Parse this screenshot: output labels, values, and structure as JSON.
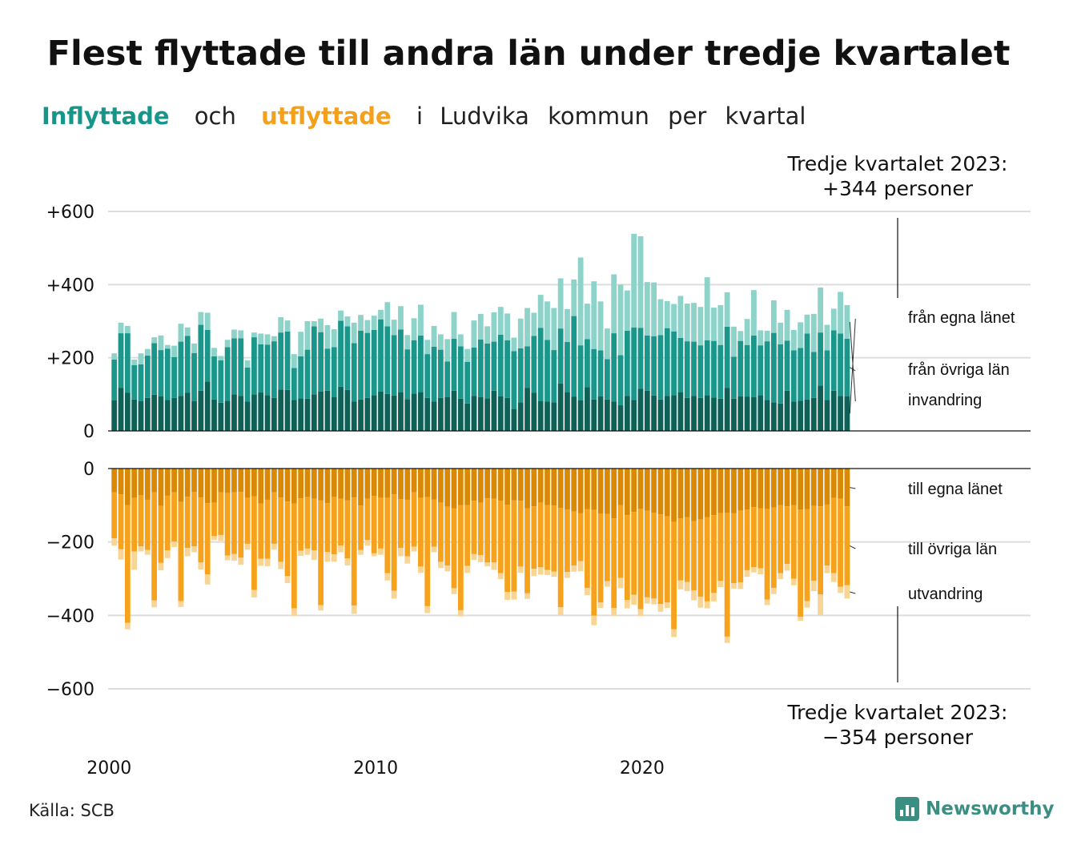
{
  "title": "Flest flyttade till andra län under tredje kvartalet",
  "subtitle": {
    "word1": "Inflyttade",
    "word2": "och",
    "word3": "utflyttade",
    "rest": [
      "i",
      "Ludvika",
      "kommun",
      "per",
      "kvartal"
    ]
  },
  "annotation_top": {
    "line1": "Tredje kvartalet 2023:",
    "line2": "+344 personer"
  },
  "annotation_bottom": {
    "line1": "Tredje kvartalet 2023:",
    "line2": "−354 personer"
  },
  "source": "Källa: SCB",
  "brand": "Newsworthy",
  "colors": {
    "in_own": "#0f6157",
    "in_other": "#1a978a",
    "in_immig": "#8dd3c9",
    "out_own": "#d98906",
    "out_other": "#f7a21c",
    "out_emig": "#f8d594",
    "grid": "#dddddd",
    "axis": "#111111"
  },
  "chart_data": {
    "type": "bar",
    "stacked": true,
    "x_start": "2000 Q1",
    "x_ticks": [
      "2000",
      "2010",
      "2020"
    ],
    "upper": {
      "yticks": [
        0,
        200,
        400,
        600
      ],
      "ytick_labels": [
        "0",
        "+200",
        "+400",
        "+600"
      ],
      "ylim": [
        0,
        600
      ],
      "segment_labels": [
        "invandring",
        "från övriga län",
        "från egna länet"
      ]
    },
    "lower": {
      "yticks": [
        0,
        -200,
        -400,
        -600
      ],
      "ytick_labels": [
        "0",
        "−200",
        "−400",
        "−600"
      ],
      "ylim": [
        -600,
        0
      ],
      "segment_labels": [
        "till egna länet",
        "till övriga län",
        "utvandring"
      ]
    },
    "series": [
      {
        "name": "från egna länet",
        "group": "in",
        "values": [
          84,
          118,
          104,
          86,
          81,
          90,
          99,
          95,
          85,
          90,
          96,
          104,
          81,
          110,
          135,
          86,
          77,
          82,
          100,
          96,
          80,
          100,
          105,
          98,
          90,
          113,
          112,
          85,
          89,
          88,
          100,
          108,
          110,
          92,
          121,
          112,
          80,
          86,
          90,
          98,
          108,
          101,
          97,
          106,
          87,
          102,
          106,
          90,
          80,
          90,
          92,
          110,
          88,
          75,
          96,
          92,
          89,
          110,
          95,
          90,
          60,
          78,
          118,
          104,
          81,
          80,
          78,
          130,
          106,
          94,
          84,
          120,
          86,
          95,
          86,
          80,
          70,
          96,
          85,
          115,
          110,
          97,
          86,
          96,
          98,
          106,
          90,
          96,
          90,
          98,
          91,
          88,
          118,
          88,
          95,
          94,
          92,
          98,
          85,
          78,
          75,
          110,
          80,
          82,
          86,
          90,
          124,
          85,
          110,
          96,
          95
        ]
      },
      {
        "name": "från övriga län",
        "group": "in",
        "values": [
          111,
          149,
          163,
          94,
          101,
          116,
          141,
          126,
          140,
          112,
          148,
          156,
          132,
          180,
          141,
          118,
          116,
          147,
          153,
          157,
          93,
          156,
          132,
          138,
          155,
          156,
          160,
          87,
          115,
          134,
          186,
          162,
          115,
          137,
          180,
          174,
          160,
          188,
          178,
          178,
          197,
          185,
          165,
          171,
          136,
          146,
          155,
          120,
          150,
          132,
          98,
          142,
          143,
          114,
          132,
          158,
          150,
          134,
          168,
          158,
          158,
          148,
          113,
          156,
          201,
          169,
          143,
          150,
          137,
          220,
          150,
          131,
          138,
          125,
          110,
          187,
          137,
          178,
          198,
          167,
          151,
          162,
          176,
          185,
          174,
          148,
          155,
          148,
          144,
          150,
          155,
          147,
          167,
          115,
          151,
          141,
          169,
          136,
          160,
          190,
          162,
          137,
          140,
          145,
          180,
          126,
          145,
          135,
          165,
          170,
          157
        ]
      },
      {
        "name": "invandring",
        "group": "in",
        "values": [
          17,
          29,
          20,
          15,
          30,
          18,
          16,
          40,
          10,
          31,
          49,
          23,
          26,
          35,
          47,
          23,
          12,
          20,
          24,
          22,
          20,
          13,
          29,
          28,
          14,
          42,
          30,
          38,
          67,
          78,
          14,
          37,
          64,
          49,
          28,
          27,
          56,
          43,
          35,
          39,
          26,
          66,
          42,
          64,
          39,
          60,
          84,
          39,
          57,
          42,
          61,
          73,
          33,
          35,
          74,
          70,
          47,
          80,
          76,
          73,
          37,
          81,
          105,
          63,
          90,
          105,
          115,
          137,
          90,
          100,
          240,
          97,
          185,
          134,
          84,
          161,
          193,
          110,
          256,
          250,
          146,
          147,
          98,
          74,
          75,
          115,
          103,
          106,
          105,
          172,
          91,
          109,
          94,
          82,
          27,
          71,
          124,
          41,
          29,
          89,
          59,
          84,
          56,
          70,
          52,
          104,
          123,
          70,
          59,
          114,
          92
        ]
      },
      {
        "name": "till egna länet",
        "group": "out",
        "values": [
          65,
          70,
          100,
          80,
          72,
          85,
          65,
          102,
          74,
          65,
          91,
          77,
          64,
          79,
          94,
          93,
          65,
          67,
          65,
          64,
          80,
          76,
          95,
          85,
          65,
          79,
          90,
          95,
          81,
          78,
          82,
          87,
          94,
          78,
          82,
          87,
          79,
          101,
          82,
          75,
          80,
          80,
          70,
          83,
          85,
          65,
          80,
          78,
          84,
          93,
          104,
          108,
          100,
          100,
          88,
          93,
          81,
          82,
          88,
          99,
          87,
          88,
          108,
          103,
          93,
          100,
          101,
          107,
          112,
          117,
          122,
          111,
          113,
          123,
          124,
          136,
          100,
          127,
          118,
          110,
          115,
          120,
          125,
          130,
          145,
          136,
          132,
          143,
          139,
          132,
          127,
          121,
          120,
          122,
          115,
          112,
          105,
          108,
          110,
          106,
          100,
          103,
          100,
          112,
          111,
          102,
          103,
          98,
          80,
          82,
          103
        ]
      },
      {
        "name": "till övriga län",
        "group": "out",
        "values": [
          125,
          150,
          320,
          146,
          140,
          137,
          294,
          155,
          149,
          134,
          270,
          139,
          148,
          177,
          194,
          91,
          116,
          170,
          168,
          179,
          125,
          255,
          151,
          161,
          140,
          175,
          203,
          286,
          143,
          140,
          141,
          285,
          133,
          156,
          128,
          158,
          294,
          121,
          113,
          156,
          138,
          205,
          263,
          133,
          154,
          148,
          187,
          297,
          129,
          161,
          160,
          218,
          286,
          165,
          145,
          143,
          175,
          174,
          197,
          237,
          248,
          179,
          232,
          170,
          176,
          176,
          180,
          271,
          170,
          147,
          130,
          214,
          288,
          242,
          183,
          244,
          198,
          231,
          226,
          273,
          236,
          234,
          244,
          235,
          293,
          169,
          177,
          189,
          210,
          230,
          212,
          185,
          338,
          190,
          195,
          165,
          164,
          164,
          247,
          219,
          185,
          157,
          200,
          292,
          250,
          204,
          240,
          166,
          205,
          240,
          215
        ]
      },
      {
        "name": "utvandring",
        "group": "out",
        "values": [
          20,
          28,
          18,
          50,
          14,
          13,
          19,
          20,
          21,
          15,
          16,
          23,
          16,
          19,
          28,
          11,
          16,
          13,
          18,
          19,
          16,
          20,
          19,
          20,
          16,
          20,
          19,
          20,
          14,
          17,
          26,
          15,
          27,
          20,
          18,
          19,
          23,
          13,
          15,
          8,
          17,
          20,
          21,
          23,
          20,
          13,
          17,
          19,
          15,
          17,
          16,
          16,
          17,
          19,
          16,
          19,
          10,
          20,
          16,
          22,
          22,
          17,
          15,
          20,
          20,
          14,
          14,
          21,
          16,
          17,
          28,
          20,
          26,
          15,
          15,
          21,
          28,
          23,
          27,
          19,
          17,
          16,
          21,
          15,
          21,
          24,
          25,
          27,
          30,
          19,
          23,
          17,
          17,
          15,
          18,
          18,
          14,
          16,
          15,
          17,
          16,
          18,
          18,
          11,
          18,
          28,
          57,
          21,
          24,
          17,
          36
        ]
      }
    ]
  }
}
